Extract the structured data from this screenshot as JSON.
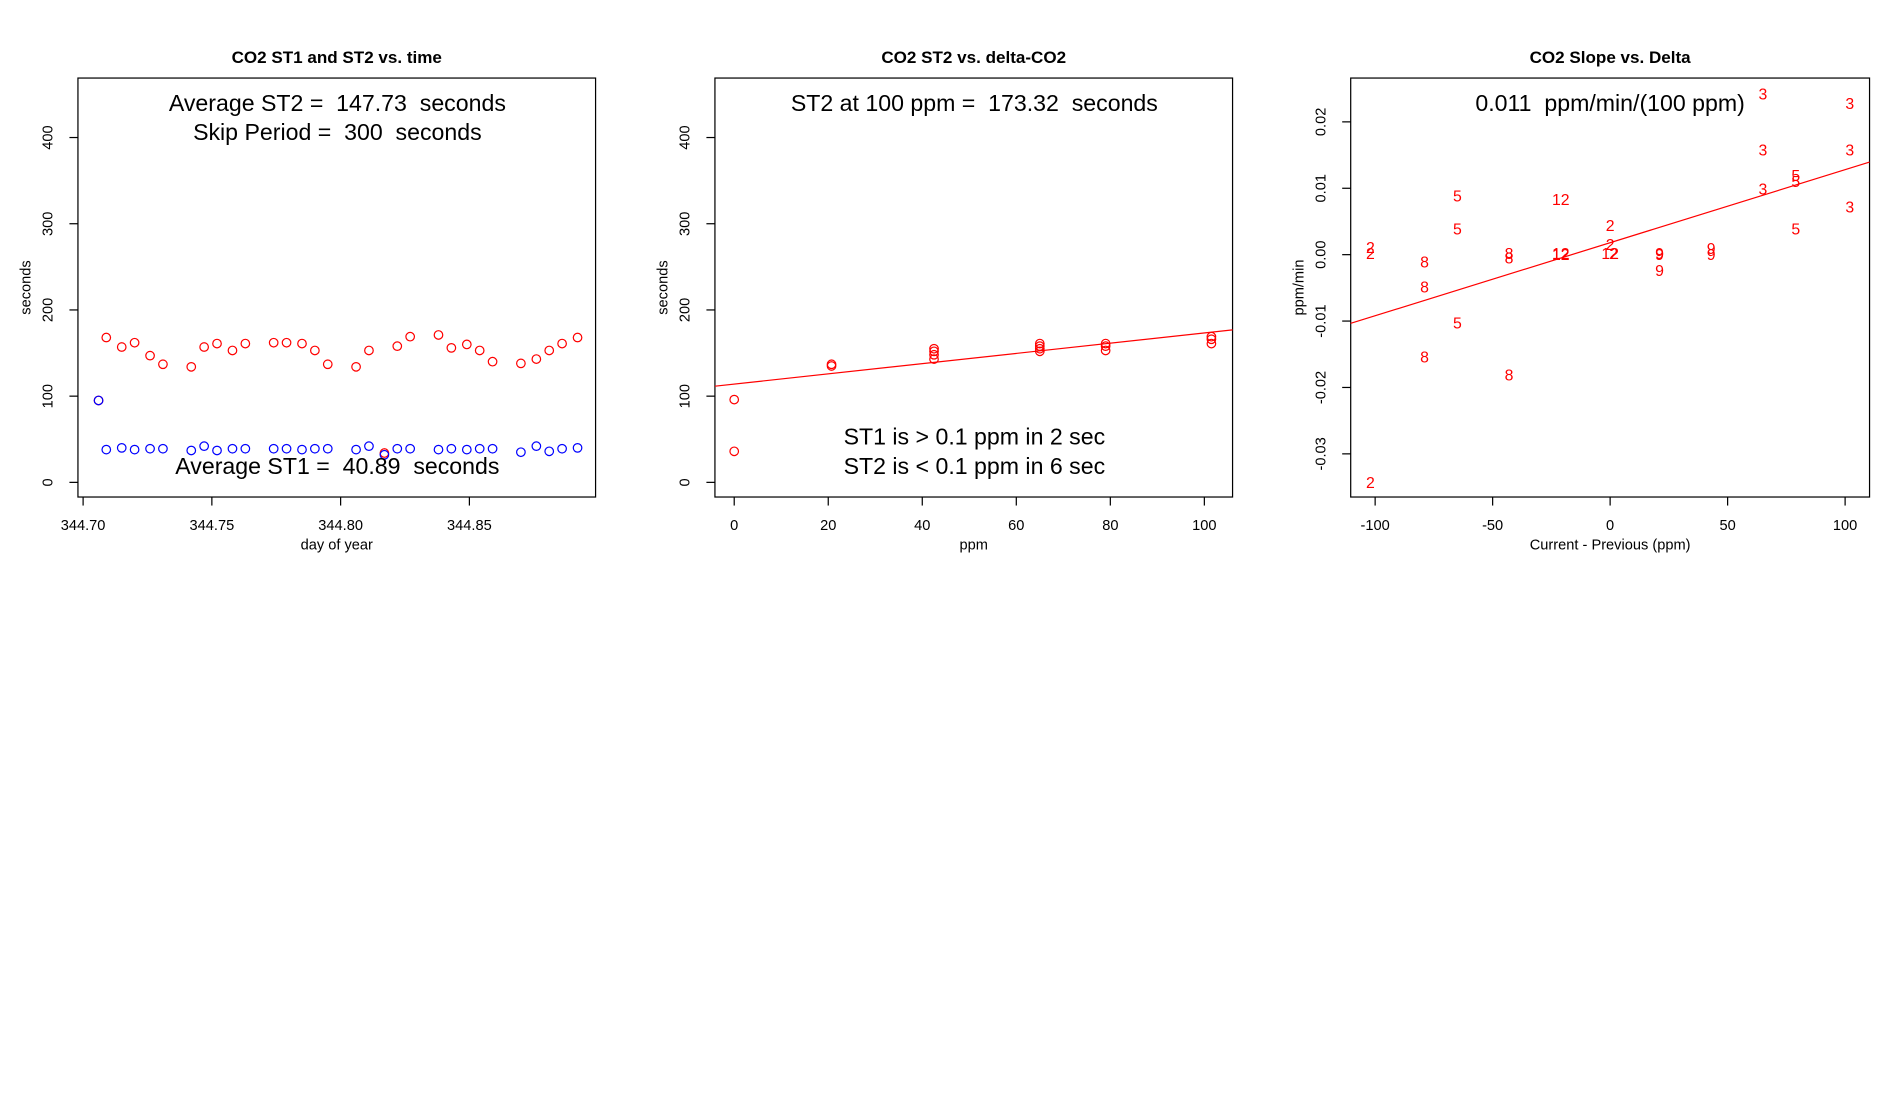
{
  "chart_data": [
    {
      "type": "scatter",
      "title": "CO2 ST1 and ST2 vs. time",
      "x_label": "day of year",
      "y_label": "seconds",
      "annotations": [
        "Average ST2 =  147.73  seconds",
        "Skip Period =  300  seconds",
        "Average ST1 =  40.89  seconds"
      ],
      "x": [
        344.706,
        344.709,
        344.715,
        344.72,
        344.726,
        344.731,
        344.742,
        344.747,
        344.752,
        344.758,
        344.763,
        344.774,
        344.779,
        344.785,
        344.79,
        344.795,
        344.806,
        344.811,
        344.817,
        344.822,
        344.827,
        344.838,
        344.843,
        344.849,
        344.854,
        344.859,
        344.87,
        344.876,
        344.881,
        344.886,
        344.892
      ],
      "series": [
        {
          "color": "#ff0000",
          "values": [
            95,
            168,
            157,
            162,
            147,
            137,
            134,
            157,
            161,
            153,
            161,
            162,
            162,
            161,
            153,
            137,
            134,
            153,
            34,
            158,
            169,
            171,
            156,
            160,
            153,
            140,
            138,
            143,
            153,
            161,
            168
          ]
        },
        {
          "color": "#0000ff",
          "values": [
            95,
            38,
            40,
            38,
            39,
            39,
            37,
            42,
            37,
            39,
            39,
            39,
            39,
            38,
            39,
            39,
            38,
            42,
            32,
            39,
            39,
            38,
            39,
            38,
            39,
            39,
            35,
            42,
            36,
            39,
            40
          ]
        }
      ],
      "xlim": [
        344.698,
        344.899
      ],
      "ylim": [
        -17,
        469
      ],
      "xticks": [
        {
          "value": 344.7,
          "label": "344.70"
        },
        344.75,
        {
          "value": 344.8,
          "label": "344.80"
        },
        344.85
      ],
      "yticks": [
        0,
        100,
        200,
        300,
        400
      ]
    },
    {
      "type": "scatter",
      "title": "CO2 ST2 vs. delta-CO2",
      "x_label": "ppm",
      "y_label": "seconds",
      "annotations": [
        "ST2 at 100 ppm =  173.32  seconds",
        "ST1 is > 0.1 ppm in 2 sec",
        "ST2 is < 0.1 ppm in 6 sec"
      ],
      "x": [
        0,
        0,
        20.7,
        20.7,
        42.5,
        42.5,
        42.5,
        42.5,
        65,
        65,
        65,
        65,
        79,
        79,
        79,
        101.5,
        101.5,
        101.5
      ],
      "series": [
        {
          "color": "#ff0000",
          "values": [
            96,
            36,
            135,
            137,
            143,
            148,
            152,
            155,
            152,
            155,
            158,
            161,
            153,
            158,
            161,
            161,
            166,
            169
          ]
        }
      ],
      "fit": {
        "intercept": 114,
        "slope": 0.593,
        "color": "#ff0000"
      },
      "xlim": [
        -4.1,
        106
      ],
      "ylim": [
        -17,
        469
      ],
      "xticks": [
        0,
        20,
        40,
        60,
        80,
        100
      ],
      "yticks": [
        0,
        100,
        200,
        300,
        400
      ]
    },
    {
      "type": "text-scatter",
      "title": "CO2 Slope vs. Delta",
      "x_label": "Current - Previous (ppm)",
      "y_label": "ppm/min",
      "annotations": [
        "0.011  ppm/min/(100 ppm)"
      ],
      "x": [
        -102,
        -102,
        -79,
        -79,
        -79,
        -65,
        -65,
        -65,
        -43,
        -43,
        -43,
        -21,
        -21,
        -21,
        0,
        0,
        0,
        1.5,
        21,
        21,
        21,
        43,
        43,
        65,
        65,
        65,
        79,
        79,
        79,
        102,
        102,
        102,
        -102
      ],
      "series": [
        {
          "color": "#ff0000",
          "values": [
            0.0009,
            0,
            -0.0013,
            -0.0051,
            -0.0156,
            0.0086,
            0.0037,
            -0.0105,
            0,
            -0.0007,
            -0.0183,
            0.0081,
            0,
            -0.0002,
            0.0042,
            0.0013,
            0,
            0,
            0,
            -0.0002,
            -0.0026,
            0.0007,
            -0.0002,
            0.024,
            0.0156,
            0.0097,
            0.0117,
            0.0108,
            0.0037,
            0.0226,
            0.0156,
            0.007,
            -0.0345
          ],
          "labels": [
            "2",
            "2",
            "8",
            "8",
            "8",
            "5",
            "5",
            "5",
            "8",
            "8",
            "8",
            "12",
            "12",
            "12",
            "2",
            "2",
            "12",
            "2",
            "9",
            "9",
            "9",
            "9",
            "9",
            "3",
            "3",
            "3",
            "5",
            "5",
            "5",
            "3",
            "3",
            "3",
            "2"
          ]
        }
      ],
      "fit": {
        "intercept": 0.0018,
        "slope": 0.00011,
        "color": "#ff0000"
      },
      "xlim": [
        -110.4,
        110.4
      ],
      "ylim": [
        -0.0365,
        0.0266
      ],
      "xticks": [
        -100,
        -50,
        0,
        50,
        100
      ],
      "yticks": [
        -0.03,
        -0.02,
        -0.01,
        {
          "value": 0,
          "label": "0.00"
        },
        0.01,
        0.02
      ]
    }
  ]
}
